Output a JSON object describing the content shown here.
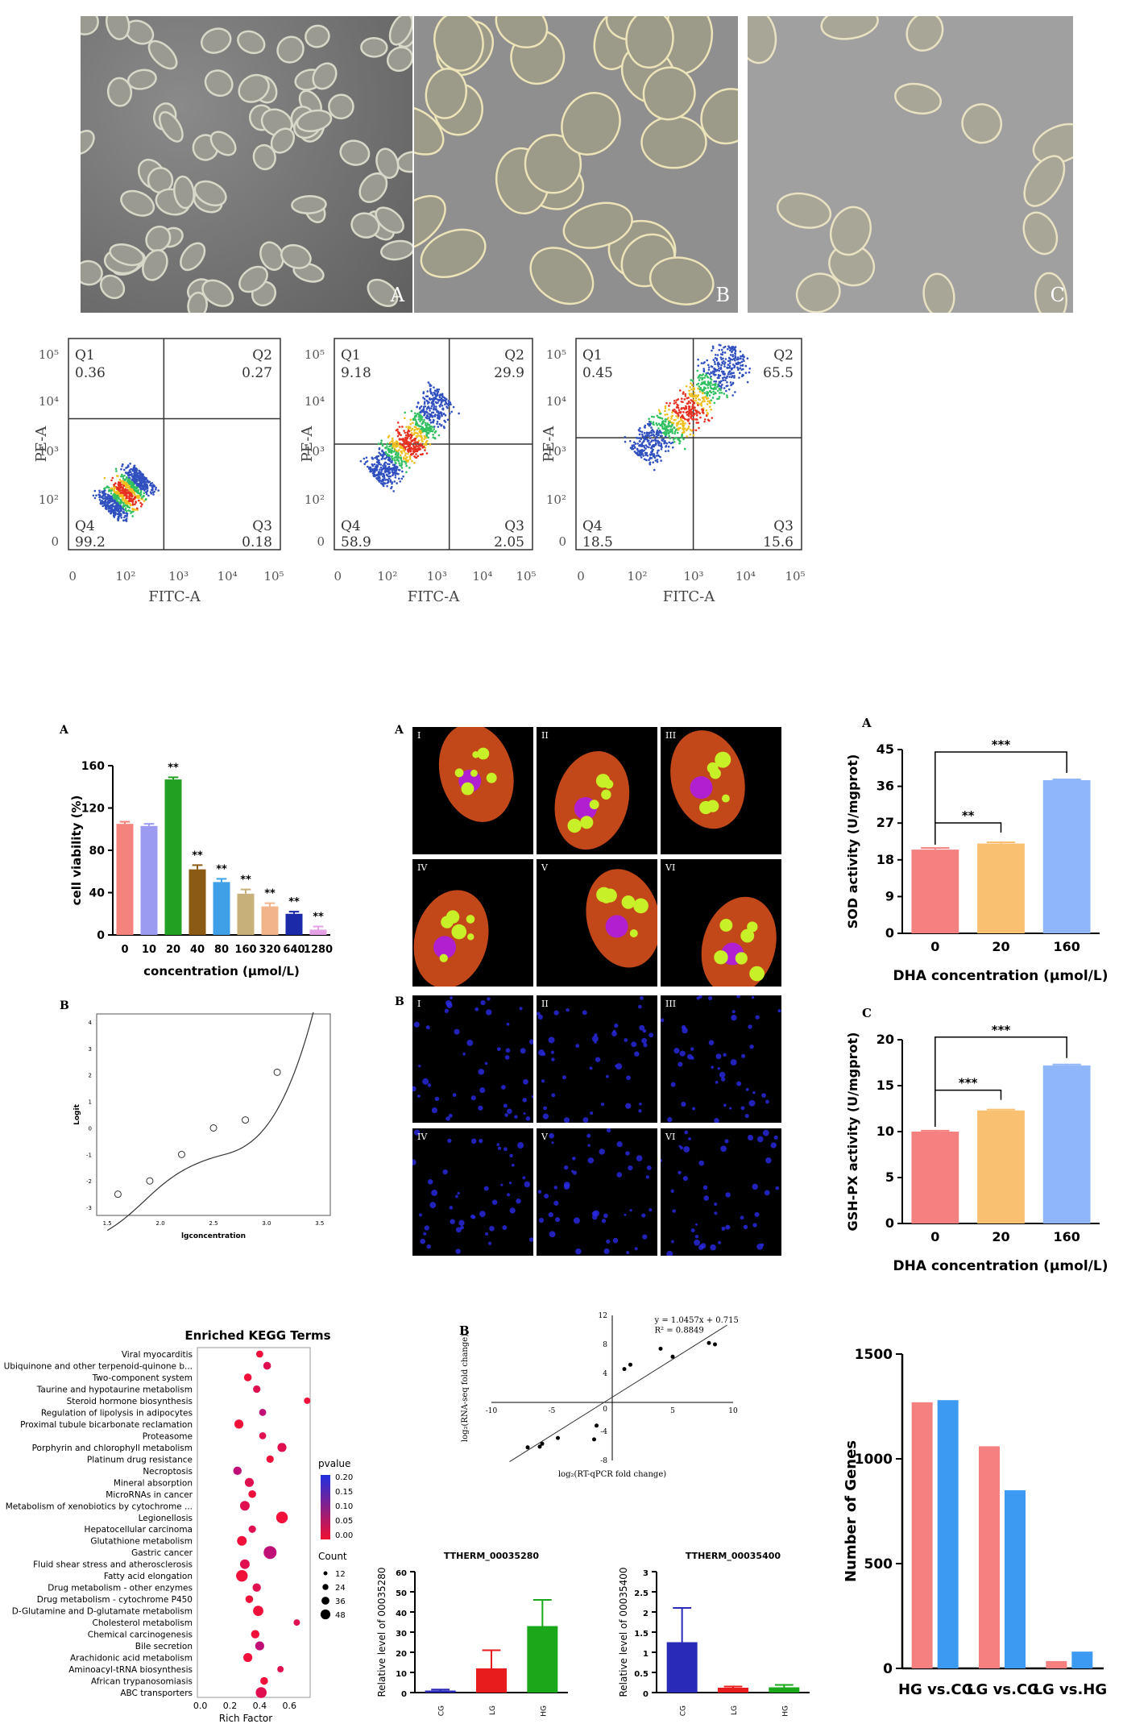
{
  "micrographs": {
    "labels": [
      "A",
      "B",
      "C"
    ]
  },
  "flow": {
    "panels": [
      {
        "q1": "Q1",
        "q1v": "0.36",
        "q2": "Q2",
        "q2v": "0.27",
        "q3": "Q3",
        "q3v": "0.18",
        "q4": "Q4",
        "q4v": "99.2"
      },
      {
        "q1": "Q1",
        "q1v": "9.18",
        "q2": "Q2",
        "q2v": "29.9",
        "q3": "Q3",
        "q3v": "2.05",
        "q4": "Q4",
        "q4v": "58.9"
      },
      {
        "q1": "Q1",
        "q1v": "0.45",
        "q2": "Q2",
        "q2v": "65.5",
        "q3": "Q3",
        "q3v": "15.6",
        "q4": "Q4",
        "q4v": "18.5"
      }
    ],
    "xlabel": "FITC-A",
    "ylabel": "PE-A",
    "xticks": [
      "0",
      "10²",
      "10³",
      "10⁴",
      "10⁵"
    ],
    "yticks": [
      "10⁵",
      "10⁴",
      "10³",
      "10²",
      "0"
    ]
  },
  "viability": {
    "panel_letter": "A",
    "ylabel": "cell viability (%)",
    "xlabel": "concentration (μmol/L)"
  },
  "logit": {
    "panel_letter": "B",
    "ylabel": "Logit",
    "xlabel": "lgconcentration"
  },
  "confocal": {
    "labelA": "A",
    "labelB": "B",
    "romans": [
      "I",
      "II",
      "III",
      "IV",
      "V",
      "VI"
    ]
  },
  "sod": {
    "panel_letter": "A",
    "ylabel": "SOD activity (U/mgprot)",
    "xlabel": "DHA concentration (μmol/L)",
    "sig1": "**",
    "sig2": "***"
  },
  "gsh": {
    "panel_letter": "C",
    "ylabel": "GSH-PX activity (U/mgprot)",
    "xlabel": "DHA concentration (μmol/L)",
    "sig1": "***",
    "sig2": "***"
  },
  "kegg": {
    "title": "Enriched KEGG Terms",
    "xlabel": "Rich Factor",
    "legend_p_title": "pvalue",
    "legend_p_ticks": [
      "0.20",
      "0.15",
      "0.10",
      "0.05",
      "0.00"
    ],
    "legend_count_title": "Count",
    "legend_count_ticks": [
      "12",
      "24",
      "36",
      "48"
    ]
  },
  "regression": {
    "panel_letter": "B",
    "equation": "y = 1.0457x + 0.715",
    "r2": "R² = 0.8849",
    "xlabel": "log₂(RT-qPCR fold change)",
    "ylabel": "log₂(RNA-seq fold change)"
  },
  "gene1": {
    "title": "TTHERM_00035280",
    "ylabel": "Relative level of 00035280"
  },
  "gene2": {
    "title": "TTHERM_00035400",
    "ylabel": "Relative level of 00035400"
  },
  "degs": {
    "ylabel": "Number of Genes"
  },
  "chart_data": [
    {
      "type": "bar",
      "id": "viability",
      "categories": [
        "0",
        "10",
        "20",
        "40",
        "80",
        "160",
        "320",
        "640",
        "1280"
      ],
      "values": [
        105,
        103,
        147,
        62,
        50,
        39,
        27,
        20,
        5
      ],
      "errors": [
        2,
        2,
        2,
        4,
        3,
        4,
        3,
        2,
        3
      ],
      "sig": [
        "",
        "",
        "**",
        "**",
        "**",
        "**",
        "**",
        "**",
        "**"
      ],
      "colors": [
        "#f4837d",
        "#9b9bf2",
        "#22a022",
        "#8b5a14",
        "#3fa0e8",
        "#c8b07a",
        "#f2b48a",
        "#1a2aa8",
        "#e6a0e6"
      ],
      "yticks": [
        0,
        40,
        80,
        120,
        160
      ],
      "ylim": [
        0,
        160
      ],
      "xlabel": "concentration (μmol/L)",
      "ylabel": "cell viability (%)"
    },
    {
      "type": "scatter",
      "id": "logit",
      "x": [
        1.6,
        1.9,
        2.2,
        2.5,
        2.8,
        3.1
      ],
      "y": [
        -2.5,
        -2.0,
        -1.0,
        0.0,
        0.3,
        2.1
      ],
      "xticks": [
        1.5,
        2.0,
        2.5,
        3.0,
        3.5
      ],
      "yticks": [
        -3,
        -2,
        -1,
        0,
        1,
        2,
        3,
        4
      ],
      "xlabel": "lgconcentration",
      "ylabel": "Logit"
    },
    {
      "type": "bar",
      "id": "sod",
      "categories": [
        "0",
        "20",
        "160"
      ],
      "values": [
        20.5,
        22,
        37.5
      ],
      "errors": [
        0.4,
        0.3,
        0.2
      ],
      "colors": [
        "#f48080",
        "#f8c070",
        "#8fb6f8"
      ],
      "yticks": [
        0,
        9,
        18,
        27,
        36,
        45
      ],
      "ylim": [
        0,
        45
      ],
      "xlabel": "DHA concentration (μmol/L)",
      "ylabel": "SOD activity (U/mgprot)"
    },
    {
      "type": "bar",
      "id": "gsh",
      "categories": [
        "0",
        "20",
        "160"
      ],
      "values": [
        10,
        12.3,
        17.2
      ],
      "errors": [
        0.1,
        0.1,
        0.1
      ],
      "colors": [
        "#f48080",
        "#f8c070",
        "#8fb6f8"
      ],
      "yticks": [
        0,
        5,
        10,
        15,
        20
      ],
      "ylim": [
        0,
        20
      ],
      "xlabel": "DHA concentration (μmol/L)",
      "ylabel": "GSH-PX activity (U/mgprot)"
    },
    {
      "type": "scatter",
      "id": "kegg",
      "title": "Enriched KEGG Terms",
      "categories": [
        "Viral myocarditis",
        "Ubiquinone and other terpenoid-quinone b...",
        "Two-component system",
        "Taurine and hypotaurine metabolism",
        "Steroid hormone biosynthesis",
        "Regulation of lipolysis in adipocytes",
        "Proximal tubule bicarbonate reclamation",
        "Proteasome",
        "Porphyrin and chlorophyll metabolism",
        "Platinum drug resistance",
        "Necroptosis",
        "Mineral absorption",
        "MicroRNAs in cancer",
        "Metabolism of xenobiotics by cytochrome ...",
        "Legionellosis",
        "Hepatocellular carcinoma",
        "Glutathione metabolism",
        "Gastric cancer",
        "Fluid shear stress and atherosclerosis",
        "Fatty acid elongation",
        "Drug metabolism - other enzymes",
        "Drug metabolism - cytochrome P450",
        "D-Glutamine and D-glutamate metabolism",
        "Cholesterol metabolism",
        "Chemical carcinogenesis",
        "Bile secretion",
        "Arachidonic acid metabolism",
        "Aminoacyl-tRNA biosynthesis",
        "African trypanosomiasis",
        "ABC transporters"
      ],
      "x": [
        0.4,
        0.45,
        0.32,
        0.38,
        0.72,
        0.42,
        0.26,
        0.42,
        0.55,
        0.47,
        0.25,
        0.33,
        0.35,
        0.3,
        0.55,
        0.35,
        0.28,
        0.47,
        0.3,
        0.28,
        0.38,
        0.33,
        0.39,
        0.65,
        0.37,
        0.4,
        0.32,
        0.54,
        0.43,
        0.41
      ],
      "pvalue": [
        0.01,
        0.02,
        0.01,
        0.02,
        0.01,
        0.03,
        0.01,
        0.02,
        0.02,
        0.01,
        0.04,
        0.02,
        0.01,
        0.02,
        0.01,
        0.02,
        0.01,
        0.03,
        0.02,
        0.01,
        0.02,
        0.01,
        0.01,
        0.02,
        0.01,
        0.03,
        0.01,
        0.02,
        0.01,
        0.02
      ],
      "count": [
        12,
        14,
        14,
        13,
        10,
        12,
        18,
        12,
        18,
        13,
        16,
        18,
        14,
        20,
        26,
        13,
        20,
        30,
        20,
        26,
        16,
        14,
        22,
        10,
        16,
        18,
        18,
        10,
        14,
        24
      ],
      "xticks": [
        0.0,
        0.2,
        0.4,
        0.6
      ],
      "xlabel": "Rich Factor"
    },
    {
      "type": "scatter",
      "id": "regression",
      "x": [
        -7,
        -6,
        -5.8,
        -4.5,
        -1.5,
        -1.3,
        1.0,
        1.5,
        4.0,
        5.0,
        8.0,
        8.5
      ],
      "y": [
        -6.2,
        -6.1,
        -5.7,
        -4.9,
        -5.1,
        -3.2,
        4.6,
        5.2,
        7.4,
        6.3,
        8.2,
        8.0
      ],
      "xticks": [
        -10,
        -5,
        0,
        5,
        10
      ],
      "yticks": [
        -8,
        -4,
        0,
        4,
        8,
        12
      ],
      "xlim": [
        -10,
        10
      ],
      "ylim": [
        -8,
        12
      ],
      "fit": {
        "slope": 1.0457,
        "intercept": 0.715
      }
    },
    {
      "type": "bar",
      "id": "gene1",
      "title": "TTHERM_00035280",
      "categories": [
        "CG",
        "LG",
        "HG"
      ],
      "values": [
        1,
        12,
        33
      ],
      "errors": [
        0.5,
        9,
        13
      ],
      "colors": [
        "#2a2ab8",
        "#e81c1c",
        "#1aa81a"
      ],
      "yticks": [
        0,
        10,
        20,
        30,
        40,
        50,
        60
      ],
      "ylim": [
        0,
        60
      ],
      "ylabel": "Relative level of 00035280"
    },
    {
      "type": "bar",
      "id": "gene2",
      "title": "TTHERM_00035400",
      "categories": [
        "CG",
        "LG",
        "HG"
      ],
      "values": [
        1.25,
        0.12,
        0.13
      ],
      "errors": [
        0.85,
        0.03,
        0.06
      ],
      "colors": [
        "#2a2ab8",
        "#e81c1c",
        "#1aa81a"
      ],
      "yticks": [
        0.0,
        0.5,
        1.0,
        1.5,
        2.0,
        2.5,
        3.0
      ],
      "ylim": [
        0,
        3
      ],
      "ylabel": "Relative level of 00035400"
    },
    {
      "type": "bar",
      "id": "degs",
      "categories": [
        "HG vs.CG",
        "LG vs.CG",
        "LG vs.HG"
      ],
      "series": [
        {
          "values": [
            1270,
            1060,
            35
          ],
          "color": "#f58080"
        },
        {
          "values": [
            1280,
            850,
            80
          ],
          "color": "#3d9af2"
        }
      ],
      "yticks": [
        0,
        500,
        1000,
        1500
      ],
      "ylim": [
        0,
        1500
      ],
      "ylabel": "Number of Genes"
    }
  ]
}
